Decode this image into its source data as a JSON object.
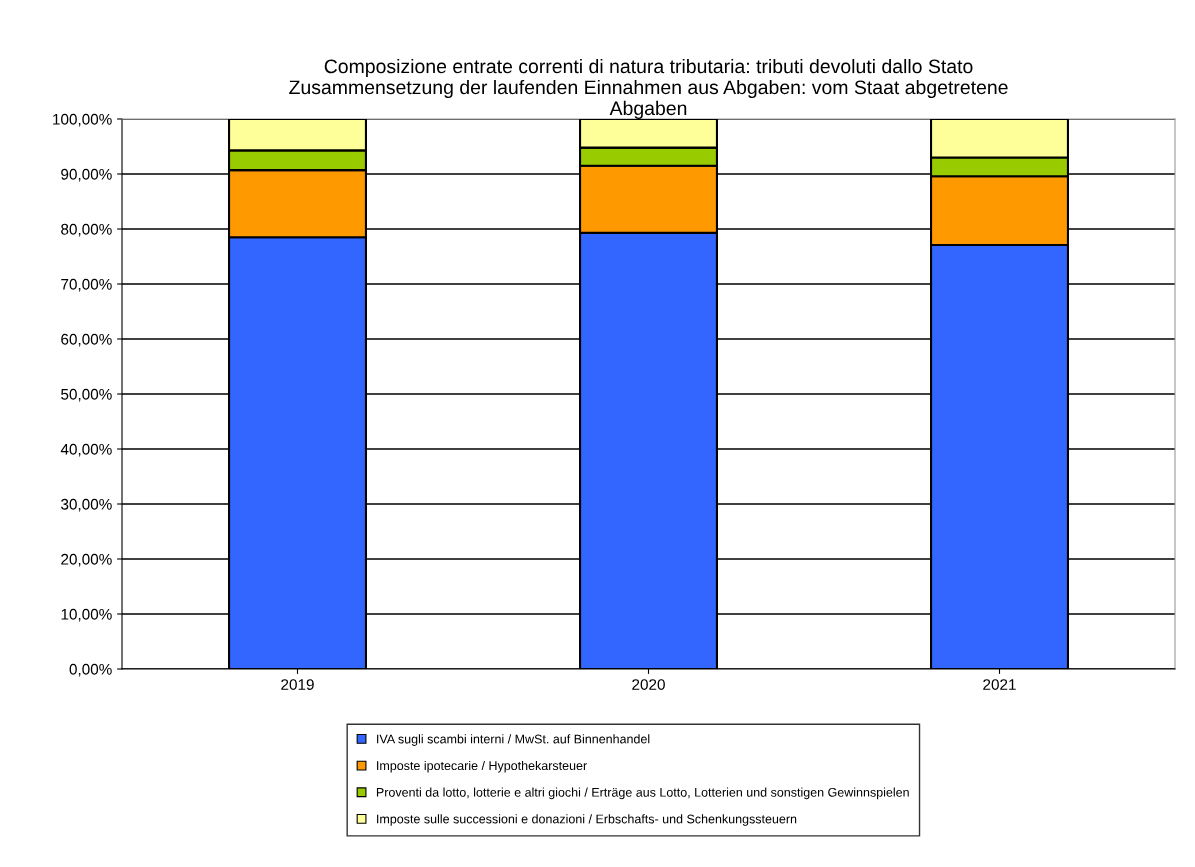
{
  "chart_data": {
    "type": "bar",
    "stacked": true,
    "title": "Composizione entrate correnti di natura tributaria: tributi devoluti dallo Stato\nZusammensetzung der laufenden Einnahmen aus Abgaben: vom Staat abgetretene\nAbgaben",
    "categories": [
      "2019",
      "2020",
      "2021"
    ],
    "series": [
      {
        "name": "IVA sugli scambi interni / MwSt. auf Binnenhandel",
        "color": "#3366ff",
        "values": [
          78.5,
          79.3,
          77.1
        ]
      },
      {
        "name": "Imposte ipotecarie / Hypothekarsteuer",
        "color": "#ff9900",
        "values": [
          12.2,
          12.2,
          12.5
        ]
      },
      {
        "name": "Proventi da lotto, lotterie e altri giochi / Erträge aus Lotto, Lotterien und sonstigen Gewinnspielen",
        "color": "#99cc00",
        "values": [
          3.6,
          3.3,
          3.4
        ]
      },
      {
        "name": "Imposte sulle successioni e donazioni / Erbschafts- und Schenkungssteuern",
        "color": "#ffff99",
        "values": [
          5.7,
          5.2,
          7.0
        ]
      }
    ],
    "ylim": [
      0,
      100
    ],
    "yticks": [
      {
        "value": 0,
        "label": "0,00%"
      },
      {
        "value": 10,
        "label": "10,00%"
      },
      {
        "value": 20,
        "label": "20,00%"
      },
      {
        "value": 30,
        "label": "30,00%"
      },
      {
        "value": 40,
        "label": "40,00%"
      },
      {
        "value": 50,
        "label": "50,00%"
      },
      {
        "value": 60,
        "label": "60,00%"
      },
      {
        "value": 70,
        "label": "70,00%"
      },
      {
        "value": 80,
        "label": "80,00%"
      },
      {
        "value": 90,
        "label": "90,00%"
      },
      {
        "value": 100,
        "label": "100,00%"
      }
    ],
    "grid": "y",
    "legend": "bottom"
  }
}
